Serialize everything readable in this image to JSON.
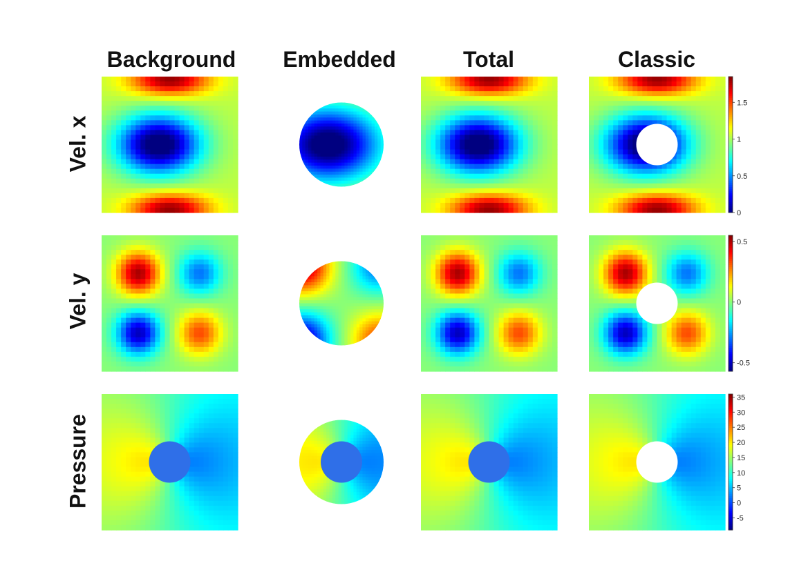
{
  "chart_data": {
    "type": "heatmap",
    "columns": [
      "Background",
      "Embedded",
      "Total",
      "Classic"
    ],
    "rows": [
      "Vel. x",
      "Vel. y",
      "Pressure"
    ],
    "colormap": "jet",
    "colorbars": [
      {
        "row": "Vel. x",
        "range": [
          0,
          1.85
        ],
        "ticks": [
          "1.5",
          "1",
          "0.5",
          "0"
        ],
        "tick_values": [
          1.5,
          1,
          0.5,
          0
        ]
      },
      {
        "row": "Vel. y",
        "range": [
          -0.57,
          0.55
        ],
        "ticks": [
          "0.5",
          "0",
          "-0.5"
        ],
        "tick_values": [
          0.5,
          0,
          -0.5
        ]
      },
      {
        "row": "Pressure",
        "range": [
          -9,
          36
        ],
        "ticks": [
          "35",
          "30",
          "25",
          "20",
          "15",
          "10",
          "5",
          "0",
          "-5"
        ],
        "tick_values": [
          35,
          30,
          25,
          20,
          15,
          10,
          5,
          0,
          -5
        ]
      }
    ]
  }
}
